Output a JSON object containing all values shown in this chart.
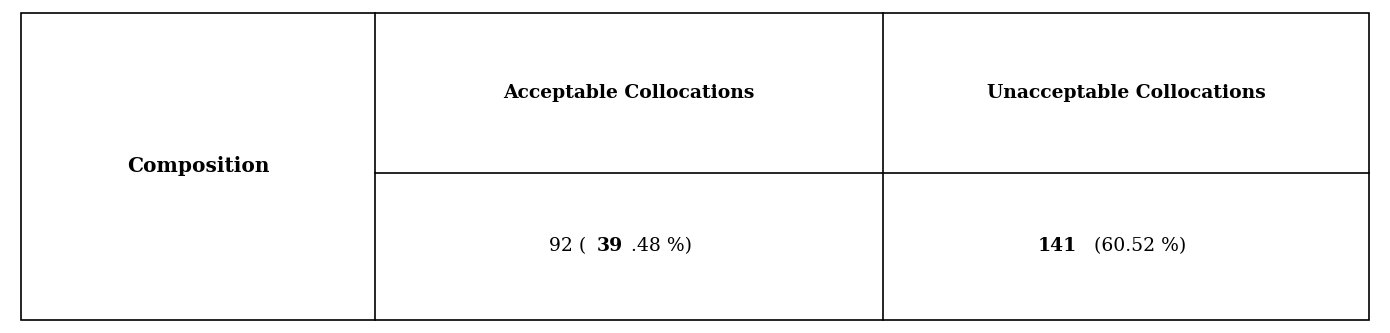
{
  "col1_label": "Composition",
  "col2_header": "Acceptable Collocations",
  "col3_header": "Unacceptable Collocations",
  "col2_parts": [
    [
      "92 (",
      false
    ],
    [
      "39",
      true
    ],
    [
      ".48 %)",
      false
    ]
  ],
  "col3_parts": [
    [
      "141",
      true
    ],
    [
      " (60.52 %)",
      false
    ]
  ],
  "border_color": "#000000",
  "bg_color": "#ffffff",
  "text_color": "#000000",
  "c0": 0.015,
  "c1": 0.27,
  "c2": 0.635,
  "c3": 0.985,
  "r_top": 0.96,
  "r_mid": 0.48,
  "r_bot": 0.04,
  "header_fontsize": 13.5,
  "value_fontsize": 13.5,
  "label_fontsize": 14.5,
  "border_lw": 1.2
}
